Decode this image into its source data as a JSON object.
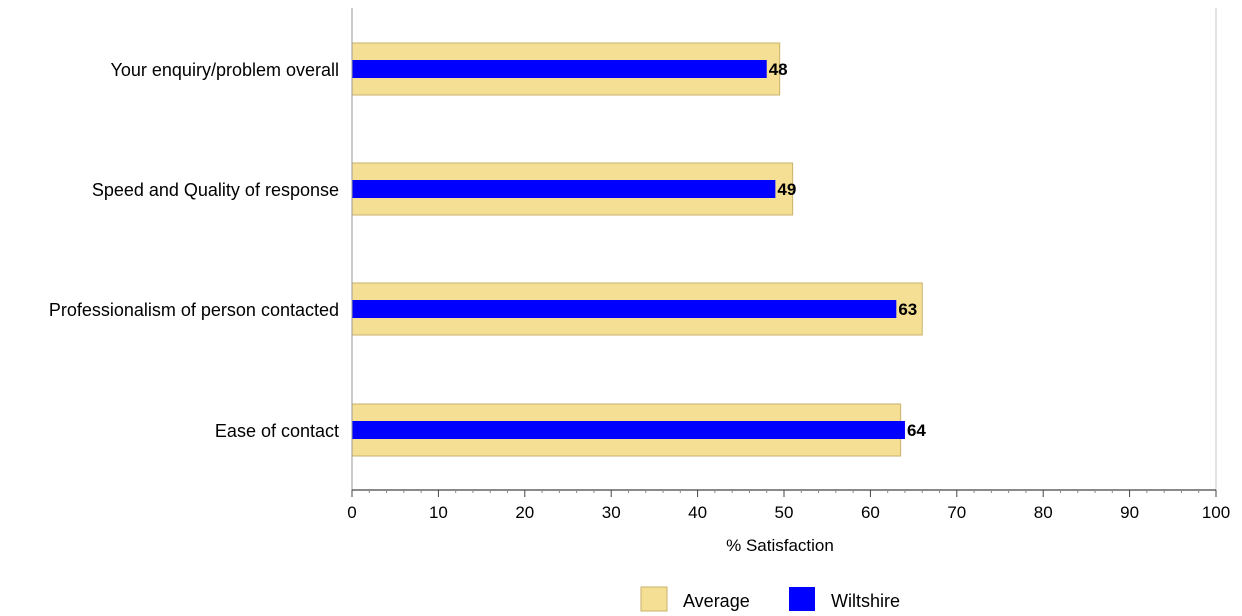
{
  "chart_data": {
    "type": "bar",
    "orientation": "horizontal",
    "categories": [
      "Your enquiry/problem overall",
      "Speed and Quality of response",
      "Professionalism of person contacted",
      "Ease of contact"
    ],
    "series": [
      {
        "name": "Average",
        "values": [
          49.5,
          51,
          66,
          63.5
        ],
        "color": "#f5df94",
        "show_labels": false
      },
      {
        "name": "Wiltshire",
        "values": [
          48,
          49,
          63,
          64
        ],
        "color": "#0000ff",
        "show_labels": true
      }
    ],
    "xlabel": "% Satisfaction",
    "xlim": [
      0,
      100
    ],
    "xticks": [
      0,
      10,
      20,
      30,
      40,
      50,
      60,
      70,
      80,
      90,
      100
    ],
    "legend_position": "bottom",
    "grid": false
  }
}
